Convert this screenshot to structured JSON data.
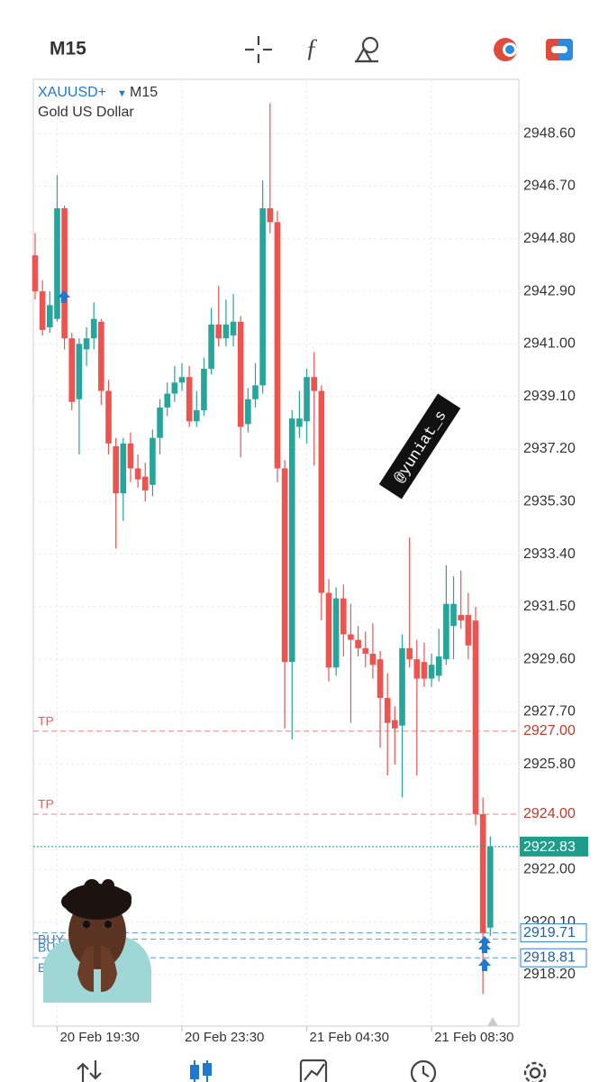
{
  "toolbar": {
    "timeframe": "M15"
  },
  "watermark": "@yuniat_s",
  "chart_data": {
    "type": "candlestick",
    "symbol": "XAUUSD+",
    "timeframe": "M15",
    "description": "Gold US Dollar",
    "up_color": "#26a69a",
    "down_color": "#ef5350",
    "categories": [
      null,
      null,
      null,
      "20 Feb 19:30",
      null,
      null,
      null,
      null,
      null,
      null,
      null,
      null,
      null,
      null,
      null,
      null,
      null,
      null,
      null,
      null,
      "20 Feb 23:30",
      null,
      null,
      null,
      null,
      null,
      null,
      null,
      null,
      null,
      null,
      null,
      null,
      null,
      null,
      null,
      null,
      "21 Feb 04:30",
      null,
      null,
      null,
      null,
      null,
      null,
      null,
      null,
      null,
      null,
      null,
      null,
      null,
      null,
      null,
      null,
      "21 Feb 08:30",
      null,
      null,
      null,
      null,
      null,
      null,
      null,
      null
    ],
    "series": {
      "open": [
        2944.2,
        2942.9,
        2941.6,
        2941.9,
        2945.9,
        2941.2,
        2939.0,
        2940.8,
        2941.2,
        2941.8,
        2939.3,
        2937.3,
        2935.6,
        2937.4,
        2936.5,
        2936.2,
        2935.9,
        2937.6,
        2938.7,
        2939.2,
        2939.6,
        2939.8,
        2938.2,
        2938.6,
        2940.1,
        2941.7,
        2941.2,
        2941.3,
        2941.8,
        2938.1,
        2939.0,
        2939.5,
        2945.9,
        2945.4,
        2936.5,
        2929.5,
        2938.0,
        2938.2,
        2939.8,
        2939.3,
        2932.0,
        2929.3,
        2931.8,
        2930.5,
        2930.3,
        2930.0,
        2929.8,
        2929.6,
        2928.2,
        2927.4,
        2927.2,
        2930.0,
        2929.6,
        2929.5,
        2928.9,
        2929.0,
        2929.6,
        2930.8,
        2931.2,
        2931.2,
        2931.0,
        2924.0,
        2919.9
      ],
      "high": [
        2945.0,
        2943.3,
        2942.9,
        2947.1,
        2946.0,
        2941.4,
        2941.2,
        2941.6,
        2942.5,
        2941.9,
        2939.7,
        2937.6,
        2937.6,
        2937.8,
        2937.0,
        2936.7,
        2937.9,
        2939.0,
        2939.6,
        2940.2,
        2940.3,
        2940.2,
        2939.3,
        2940.5,
        2942.3,
        2943.1,
        2942.6,
        2942.8,
        2942.0,
        2939.4,
        2940.3,
        2946.9,
        2949.7,
        2945.8,
        2936.8,
        2938.6,
        2939.3,
        2940.1,
        2940.7,
        2939.5,
        2932.5,
        2932.2,
        2932.3,
        2931.6,
        2930.8,
        2930.6,
        2930.9,
        2929.9,
        2929.1,
        2927.9,
        2930.5,
        2934.0,
        2930.3,
        2930.2,
        2929.8,
        2930.7,
        2933.0,
        2932.6,
        2932.8,
        2932.0,
        2931.5,
        2924.6,
        2923.2
      ],
      "low": [
        2942.6,
        2941.3,
        2941.4,
        2941.8,
        2940.8,
        2938.6,
        2937.0,
        2940.2,
        2940.8,
        2938.8,
        2937.0,
        2933.6,
        2934.6,
        2936.0,
        2935.8,
        2935.3,
        2935.5,
        2937.0,
        2938.4,
        2938.9,
        2939.3,
        2938.0,
        2938.0,
        2938.4,
        2939.9,
        2940.9,
        2940.9,
        2940.9,
        2936.9,
        2937.8,
        2938.7,
        2939.2,
        2945.0,
        2936.0,
        2927.1,
        2926.7,
        2937.6,
        2937.4,
        2936.6,
        2931.0,
        2928.8,
        2929.0,
        2929.7,
        2927.3,
        2929.7,
        2929.3,
        2928.9,
        2926.4,
        2925.4,
        2925.8,
        2924.6,
        2929.3,
        2925.4,
        2928.6,
        2928.6,
        2928.8,
        2929.4,
        2929.6,
        2930.7,
        2929.6,
        2923.6,
        2917.5,
        2919.6
      ],
      "close": [
        2942.9,
        2941.5,
        2942.4,
        2945.9,
        2941.2,
        2938.9,
        2941.0,
        2941.2,
        2941.9,
        2939.3,
        2937.4,
        2935.6,
        2937.4,
        2936.5,
        2936.1,
        2935.7,
        2937.6,
        2938.7,
        2939.2,
        2939.6,
        2939.8,
        2938.2,
        2938.6,
        2940.1,
        2941.7,
        2941.2,
        2941.7,
        2941.8,
        2938.0,
        2939.0,
        2939.5,
        2945.9,
        2945.4,
        2936.5,
        2929.5,
        2938.3,
        2938.3,
        2939.8,
        2939.3,
        2932.0,
        2929.3,
        2931.8,
        2930.5,
        2930.3,
        2930.0,
        2929.8,
        2929.4,
        2928.2,
        2927.3,
        2927.1,
        2930.0,
        2929.6,
        2928.9,
        2928.9,
        2929.4,
        2929.7,
        2931.6,
        2931.6,
        2931.0,
        2930.1,
        2924.0,
        2919.7,
        2922.83
      ]
    },
    "ylim": [
      2916.34,
      2950.56
    ],
    "yticks": [
      {
        "value": 2948.6,
        "label": "2948.60"
      },
      {
        "value": 2946.7,
        "label": "2946.70"
      },
      {
        "value": 2944.8,
        "label": "2944.80"
      },
      {
        "value": 2942.9,
        "label": "2942.90"
      },
      {
        "value": 2941.0,
        "label": "2941.00"
      },
      {
        "value": 2939.1,
        "label": "2939.10"
      },
      {
        "value": 2937.2,
        "label": "2937.20"
      },
      {
        "value": 2935.3,
        "label": "2935.30"
      },
      {
        "value": 2933.4,
        "label": "2933.40"
      },
      {
        "value": 2931.5,
        "label": "2931.50"
      },
      {
        "value": 2929.6,
        "label": "2929.60"
      },
      {
        "value": 2927.7,
        "label": "2927.70"
      },
      {
        "value": 2925.8,
        "label": "2925.80"
      },
      {
        "value": 2922.0,
        "label": "2922.00"
      },
      {
        "value": 2920.1,
        "label": "2920.10"
      },
      {
        "value": 2918.2,
        "label": "2918.20"
      }
    ],
    "grid": true,
    "levels": [
      {
        "name": "TP",
        "value": 2927.0,
        "price_label": "2927.00",
        "color": "#e06666",
        "kind": "tp"
      },
      {
        "name": "TP",
        "value": 2924.0,
        "price_label": "2924.00",
        "color": "#e06666",
        "kind": "tp"
      },
      {
        "name": "BUY",
        "value": 2919.71,
        "price_label": "2919.71",
        "color": "#2f7fd8",
        "kind": "buy"
      },
      {
        "name": "BUY",
        "value": 2919.48,
        "color": "#2f7fd8",
        "kind": "buy"
      },
      {
        "name": "BUY 0",
        "value": 2918.81,
        "price_label": "2918.81",
        "color": "#2f7fd8",
        "kind": "buy"
      }
    ],
    "current_price": {
      "value": 2922.83,
      "label": "2922.83",
      "color": "#1e9e8a"
    }
  }
}
